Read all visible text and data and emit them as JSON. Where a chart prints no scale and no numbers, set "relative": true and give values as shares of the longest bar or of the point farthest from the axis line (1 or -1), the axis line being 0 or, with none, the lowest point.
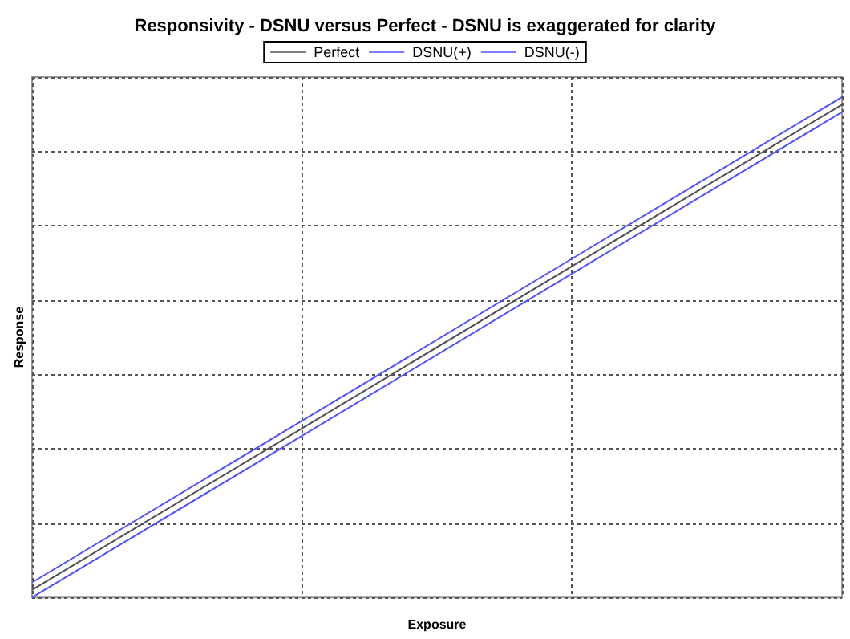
{
  "chart_data": {
    "type": "line",
    "title": "Responsivity - DSNU versus Perfect - DSNU is exaggerated for clarity",
    "xlabel": "Exposure",
    "ylabel": "Response",
    "relative": true,
    "categories": [
      null,
      null,
      null,
      null
    ],
    "series": [
      {
        "name": "Perfect",
        "color": "#505050",
        "values": [
          0.015,
          0.338,
          0.662,
          0.985
        ]
      },
      {
        "name": "DSNU(+)",
        "color": "#5050ff",
        "values": [
          0.03,
          0.353,
          0.677,
          1
        ]
      },
      {
        "name": "DSNU(-)",
        "color": "#5050ff",
        "values": [
          0,
          0.323,
          0.647,
          0.97
        ]
      }
    ],
    "grid": true,
    "legend": "top",
    "marker": "none",
    "line_style": "solid"
  }
}
